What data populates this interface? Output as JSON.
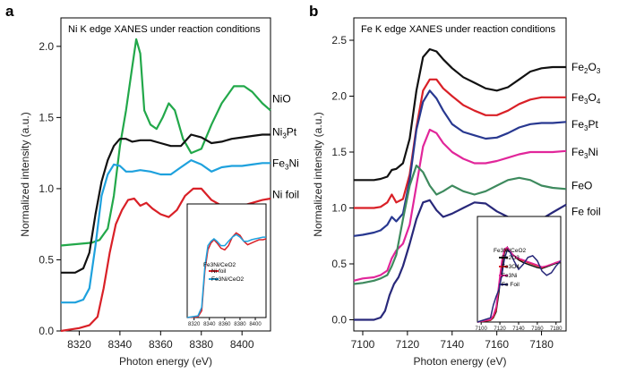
{
  "chart_data": [
    {
      "id": "a",
      "type": "line",
      "panel_label": "a",
      "title": "Ni K edge XANES under reaction conditions",
      "xlabel": "Photon energy (eV)",
      "ylabel": "Normalized intensity (a.u.)",
      "xlim": [
        8311,
        8414
      ],
      "ylim": [
        0,
        2.2
      ],
      "xticks": [
        8320,
        8340,
        8360,
        8380,
        8400
      ],
      "yticks": [
        0.0,
        0.5,
        1.0,
        1.5,
        2.0
      ],
      "ytick_labels": [
        "0.0",
        "0.5",
        "1.0",
        "1.5",
        "2.0"
      ],
      "series": [
        {
          "name_main": "NiO",
          "name_sub": "",
          "name_tail": "",
          "label_value": 1.63,
          "color": "#22a84a",
          "x": [
            8311,
            8326,
            8330,
            8334,
            8337,
            8340,
            8343,
            8346,
            8348,
            8350,
            8352,
            8355,
            8358,
            8361,
            8364,
            8367,
            8371,
            8375,
            8380,
            8385,
            8390,
            8396,
            8401,
            8405,
            8410,
            8414
          ],
          "y": [
            0.6,
            0.62,
            0.64,
            0.72,
            0.95,
            1.3,
            1.55,
            1.85,
            2.05,
            1.95,
            1.55,
            1.45,
            1.42,
            1.5,
            1.6,
            1.55,
            1.35,
            1.25,
            1.28,
            1.45,
            1.6,
            1.72,
            1.72,
            1.68,
            1.6,
            1.55
          ]
        },
        {
          "name_main": "Ni",
          "name_sub": "3",
          "name_tail": "Pt",
          "label_value": 1.4,
          "color": "#111111",
          "x": [
            8311,
            8318,
            8322,
            8325,
            8328,
            8331,
            8334,
            8337,
            8340,
            8343,
            8346,
            8350,
            8355,
            8360,
            8365,
            8370,
            8375,
            8380,
            8385,
            8390,
            8395,
            8400,
            8405,
            8410,
            8414
          ],
          "y": [
            0.41,
            0.41,
            0.44,
            0.55,
            0.82,
            1.05,
            1.2,
            1.3,
            1.35,
            1.35,
            1.33,
            1.34,
            1.34,
            1.32,
            1.3,
            1.3,
            1.38,
            1.36,
            1.32,
            1.33,
            1.35,
            1.36,
            1.37,
            1.38,
            1.38
          ]
        },
        {
          "name_main": "Fe",
          "name_sub": "3",
          "name_tail": "Ni",
          "label_value": 1.18,
          "color": "#1ea1dd",
          "x": [
            8311,
            8318,
            8322,
            8325,
            8328,
            8331,
            8334,
            8337,
            8340,
            8343,
            8346,
            8350,
            8355,
            8360,
            8365,
            8370,
            8375,
            8380,
            8385,
            8390,
            8395,
            8400,
            8405,
            8410,
            8414
          ],
          "y": [
            0.2,
            0.2,
            0.22,
            0.3,
            0.6,
            0.95,
            1.1,
            1.17,
            1.16,
            1.12,
            1.12,
            1.13,
            1.12,
            1.1,
            1.1,
            1.15,
            1.2,
            1.17,
            1.12,
            1.15,
            1.16,
            1.16,
            1.17,
            1.18,
            1.18
          ]
        },
        {
          "name_main": "Ni foil",
          "name_sub": "",
          "name_tail": "",
          "label_value": 0.96,
          "color": "#d92027",
          "x": [
            8311,
            8320,
            8325,
            8329,
            8332,
            8335,
            8338,
            8341,
            8344,
            8347,
            8350,
            8353,
            8356,
            8360,
            8364,
            8368,
            8372,
            8376,
            8380,
            8385,
            8390,
            8395,
            8400,
            8405,
            8410,
            8414
          ],
          "y": [
            0.0,
            0.02,
            0.04,
            0.1,
            0.3,
            0.55,
            0.75,
            0.85,
            0.92,
            0.93,
            0.88,
            0.9,
            0.86,
            0.82,
            0.8,
            0.85,
            0.95,
            1.0,
            1.0,
            0.92,
            0.88,
            0.86,
            0.88,
            0.9,
            0.92,
            0.93
          ]
        }
      ],
      "inset": {
        "legend_title": "Fe3Ni/CeO2",
        "xlim": [
          8311,
          8414
        ],
        "xticks": [
          8320,
          8340,
          8360,
          8380,
          8400
        ],
        "ylim": [
          0,
          1.3
        ],
        "series": [
          {
            "name": "Ni foil",
            "color": "#d92027",
            "x": [
              8311,
              8325,
              8330,
              8334,
              8338,
              8342,
              8346,
              8350,
              8355,
              8360,
              8365,
              8370,
              8375,
              8380,
              8385,
              8390,
              8395,
              8400,
              8405,
              8410,
              8414
            ],
            "y": [
              0.0,
              0.01,
              0.08,
              0.55,
              0.8,
              0.88,
              0.92,
              0.88,
              0.82,
              0.8,
              0.85,
              0.95,
              1.0,
              0.97,
              0.9,
              0.86,
              0.88,
              0.9,
              0.92,
              0.92,
              0.93
            ]
          },
          {
            "name": "Fe3Ni/CeO2",
            "color": "#1ea1dd",
            "x": [
              8311,
              8325,
              8330,
              8334,
              8338,
              8342,
              8346,
              8350,
              8355,
              8360,
              8365,
              8370,
              8375,
              8380,
              8385,
              8390,
              8395,
              8400,
              8405,
              8410,
              8414
            ],
            "y": [
              0.0,
              0.02,
              0.12,
              0.6,
              0.85,
              0.9,
              0.93,
              0.9,
              0.85,
              0.85,
              0.9,
              0.95,
              0.98,
              0.95,
              0.9,
              0.9,
              0.92,
              0.93,
              0.94,
              0.95,
              0.95
            ]
          }
        ]
      }
    },
    {
      "id": "b",
      "type": "line",
      "panel_label": "b",
      "title": "Fe K edge XANES under reaction conditions",
      "xlabel": "Photon energy (eV)",
      "ylabel": "Normalized intensity (a.u.)",
      "xlim": [
        7096,
        7191
      ],
      "ylim": [
        -0.1,
        2.7
      ],
      "xticks": [
        7100,
        7120,
        7140,
        7160,
        7180
      ],
      "yticks": [
        0.0,
        0.5,
        1.0,
        1.5,
        2.0,
        2.5
      ],
      "ytick_labels": [
        "0.0",
        "0.5",
        "1.0",
        "1.5",
        "2.0",
        "2.5"
      ],
      "series": [
        {
          "name_main": "Fe",
          "name_sub": "2",
          "name_tail": "O",
          "name_sub2": "3",
          "label_value": 2.26,
          "color": "#111111",
          "x": [
            7096,
            7100,
            7105,
            7108,
            7111,
            7113,
            7115,
            7118,
            7121,
            7124,
            7127,
            7130,
            7133,
            7136,
            7140,
            7145,
            7150,
            7155,
            7160,
            7165,
            7170,
            7175,
            7180,
            7185,
            7191
          ],
          "y": [
            1.25,
            1.25,
            1.25,
            1.26,
            1.28,
            1.34,
            1.35,
            1.4,
            1.62,
            2.05,
            2.35,
            2.42,
            2.4,
            2.33,
            2.25,
            2.17,
            2.12,
            2.07,
            2.05,
            2.08,
            2.15,
            2.22,
            2.25,
            2.26,
            2.26
          ]
        },
        {
          "name_main": "Fe",
          "name_sub": "3",
          "name_tail": "O",
          "name_sub2": "4",
          "label_value": 1.99,
          "color": "#d92027",
          "x": [
            7096,
            7100,
            7105,
            7108,
            7111,
            7113,
            7115,
            7118,
            7121,
            7124,
            7127,
            7130,
            7133,
            7136,
            7140,
            7145,
            7150,
            7155,
            7160,
            7165,
            7170,
            7175,
            7180,
            7185,
            7191
          ],
          "y": [
            1.0,
            1.0,
            1.0,
            1.01,
            1.05,
            1.12,
            1.05,
            1.08,
            1.3,
            1.72,
            2.05,
            2.15,
            2.15,
            2.07,
            2.0,
            1.92,
            1.87,
            1.83,
            1.83,
            1.87,
            1.93,
            1.97,
            1.99,
            1.99,
            1.99
          ]
        },
        {
          "name_main": "Fe",
          "name_sub": "3",
          "name_tail": "Pt",
          "name_sub2": "",
          "label_value": 1.75,
          "color": "#283890",
          "x": [
            7096,
            7100,
            7105,
            7108,
            7111,
            7113,
            7115,
            7118,
            7121,
            7124,
            7127,
            7130,
            7133,
            7136,
            7140,
            7145,
            7150,
            7155,
            7160,
            7165,
            7170,
            7175,
            7180,
            7185,
            7191
          ],
          "y": [
            0.75,
            0.76,
            0.78,
            0.8,
            0.85,
            0.92,
            0.88,
            0.95,
            1.25,
            1.7,
            1.95,
            2.05,
            1.98,
            1.87,
            1.75,
            1.68,
            1.65,
            1.62,
            1.63,
            1.67,
            1.72,
            1.75,
            1.76,
            1.76,
            1.77
          ]
        },
        {
          "name_main": "Fe",
          "name_sub": "3",
          "name_tail": "Ni",
          "name_sub2": "",
          "label_value": 1.5,
          "color": "#e1269a",
          "x": [
            7096,
            7100,
            7105,
            7108,
            7111,
            7113,
            7115,
            7118,
            7121,
            7124,
            7127,
            7130,
            7133,
            7136,
            7140,
            7145,
            7150,
            7155,
            7160,
            7165,
            7170,
            7175,
            7180,
            7185,
            7191
          ],
          "y": [
            0.35,
            0.37,
            0.38,
            0.4,
            0.44,
            0.55,
            0.62,
            0.68,
            0.85,
            1.2,
            1.55,
            1.7,
            1.67,
            1.58,
            1.5,
            1.44,
            1.4,
            1.4,
            1.42,
            1.45,
            1.48,
            1.5,
            1.5,
            1.5,
            1.51
          ]
        },
        {
          "name_main": "FeO",
          "name_sub": "",
          "name_tail": "",
          "name_sub2": "",
          "label_value": 1.2,
          "color": "#3e8a5e",
          "x": [
            7096,
            7100,
            7105,
            7108,
            7111,
            7113,
            7115,
            7118,
            7121,
            7124,
            7127,
            7130,
            7133,
            7136,
            7140,
            7145,
            7150,
            7155,
            7160,
            7165,
            7170,
            7175,
            7180,
            7185,
            7191
          ],
          "y": [
            0.32,
            0.33,
            0.35,
            0.37,
            0.4,
            0.48,
            0.58,
            0.9,
            1.2,
            1.38,
            1.32,
            1.2,
            1.12,
            1.15,
            1.2,
            1.15,
            1.12,
            1.15,
            1.2,
            1.25,
            1.27,
            1.25,
            1.2,
            1.18,
            1.17
          ]
        },
        {
          "name_main": "Fe foil",
          "name_sub": "",
          "name_tail": "",
          "name_sub2": "",
          "label_value": 0.97,
          "color": "#28287a",
          "x": [
            7096,
            7100,
            7105,
            7108,
            7110,
            7112,
            7114,
            7116,
            7118,
            7121,
            7124,
            7127,
            7130,
            7133,
            7136,
            7140,
            7145,
            7150,
            7155,
            7160,
            7165,
            7170,
            7175,
            7180,
            7185,
            7191
          ],
          "y": [
            0.0,
            0.0,
            0.0,
            0.02,
            0.08,
            0.22,
            0.32,
            0.38,
            0.48,
            0.68,
            0.9,
            1.05,
            1.07,
            0.98,
            0.92,
            0.95,
            1.0,
            1.05,
            1.04,
            0.97,
            0.92,
            0.88,
            0.87,
            0.9,
            0.96,
            1.03
          ]
        }
      ],
      "inset": {
        "legend_title": "Fe3Ni/CeO2",
        "xlim": [
          7096,
          7185
        ],
        "xticks": [
          7100,
          7120,
          7140,
          7160,
          7180
        ],
        "ylim": [
          0,
          1.2
        ],
        "series": [
          {
            "name": "Fe2O3",
            "color": "#111111",
            "x": [
              7096,
              7110,
              7113,
              7116,
              7119,
              7122,
              7125,
              7128,
              7131,
              7135,
              7140,
              7145,
              7150,
              7155,
              7160,
              7165,
              7170,
              7175,
              7180,
              7185
            ],
            "y": [
              0.0,
              0.02,
              0.05,
              0.12,
              0.35,
              0.65,
              0.82,
              0.88,
              0.82,
              0.78,
              0.73,
              0.7,
              0.68,
              0.66,
              0.64,
              0.63,
              0.65,
              0.67,
              0.69,
              0.7
            ]
          },
          {
            "name": "Fe3O4",
            "color": "#d92027",
            "x": [
              7096,
              7110,
              7113,
              7116,
              7119,
              7122,
              7125,
              7128,
              7131,
              7135,
              7140,
              7145,
              7150,
              7155,
              7160,
              7165,
              7170,
              7175,
              7180,
              7185
            ],
            "y": [
              0.0,
              0.02,
              0.06,
              0.14,
              0.42,
              0.7,
              0.84,
              0.86,
              0.82,
              0.78,
              0.74,
              0.72,
              0.7,
              0.68,
              0.66,
              0.64,
              0.66,
              0.68,
              0.7,
              0.71
            ]
          },
          {
            "name": "Fe3Ni",
            "color": "#e1269a",
            "x": [
              7096,
              7110,
              7113,
              7116,
              7119,
              7122,
              7125,
              7128,
              7131,
              7135,
              7140,
              7145,
              7150,
              7155,
              7160,
              7165,
              7170,
              7175,
              7180,
              7185
            ],
            "y": [
              0.0,
              0.03,
              0.08,
              0.18,
              0.45,
              0.72,
              0.86,
              0.88,
              0.83,
              0.78,
              0.75,
              0.73,
              0.71,
              0.69,
              0.67,
              0.65,
              0.66,
              0.68,
              0.7,
              0.72
            ]
          },
          {
            "name": "Fe Foil",
            "color": "#28287a",
            "x": [
              7096,
              7110,
              7113,
              7116,
              7119,
              7122,
              7125,
              7128,
              7131,
              7135,
              7140,
              7145,
              7150,
              7155,
              7160,
              7165,
              7170,
              7175,
              7180,
              7185
            ],
            "y": [
              0.0,
              0.05,
              0.2,
              0.3,
              0.38,
              0.55,
              0.75,
              0.85,
              0.82,
              0.72,
              0.62,
              0.68,
              0.76,
              0.78,
              0.72,
              0.6,
              0.55,
              0.58,
              0.66,
              0.72
            ]
          }
        ]
      }
    }
  ]
}
